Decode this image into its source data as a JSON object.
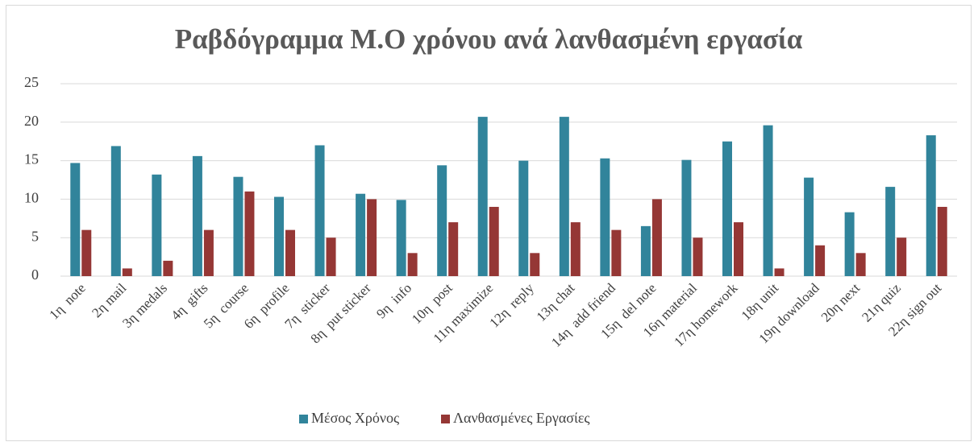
{
  "chart_data": {
    "type": "bar",
    "title": "Ραβδόγραμμα Μ.Ο χρόνου ανά λανθασμένη εργασία",
    "categories": [
      "1η  note",
      "2η mail",
      "3η medals",
      "4η  gifts",
      "5η  course",
      "6η  profile",
      "7η  sticker",
      "8η  put sticker",
      "9η  info",
      "10η  post",
      "11η maximize",
      "12η  reply",
      "13η chat",
      "14η  add friend",
      "15η  del note",
      "16η material",
      "17η homework",
      "18η unit",
      "19η download",
      "20η next",
      "21η quiz",
      "22η sign out"
    ],
    "series": [
      {
        "name": "Μέσος Χρόνος",
        "color": "#31849b",
        "values": [
          14.7,
          16.9,
          13.2,
          15.6,
          12.9,
          10.3,
          17.0,
          10.7,
          9.9,
          14.4,
          20.7,
          15.0,
          20.7,
          15.3,
          6.5,
          15.1,
          17.5,
          19.6,
          12.8,
          8.3,
          11.6,
          18.3
        ]
      },
      {
        "name": "Λανθασμένες Εργασίες",
        "color": "#953735",
        "values": [
          6,
          1,
          2,
          6,
          11,
          6,
          5,
          10,
          3,
          7,
          9,
          3,
          7,
          6,
          10,
          5,
          7,
          1,
          4,
          3,
          5,
          9
        ]
      }
    ],
    "ylim": [
      0,
      25
    ],
    "yticks": [
      0,
      5,
      10,
      15,
      20,
      25
    ],
    "grid": true,
    "legend": "bottom"
  }
}
